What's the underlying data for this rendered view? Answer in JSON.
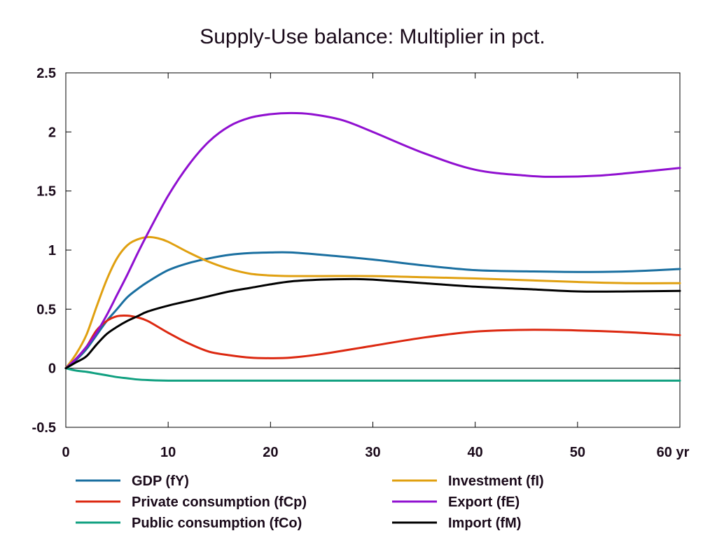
{
  "chart_data": {
    "type": "line",
    "title": "Supply-Use balance: Multiplier in pct.",
    "xlabel": "",
    "ylabel": "",
    "x_unit_label": "yr",
    "xlim": [
      0,
      60
    ],
    "ylim": [
      -0.5,
      2.5
    ],
    "x_ticks": [
      0,
      10,
      20,
      30,
      40,
      50,
      60
    ],
    "x_tick_labels": [
      "0",
      "10",
      "20",
      "30",
      "40",
      "50",
      "60 yr"
    ],
    "y_ticks": [
      -0.5,
      0,
      0.5,
      1,
      1.5,
      2,
      2.5
    ],
    "y_tick_labels": [
      "-0.5",
      "0",
      "0.5",
      "1",
      "1.5",
      "2",
      "2.5"
    ],
    "zero_line": true,
    "grid": false,
    "legend_position": "bottom",
    "series": [
      {
        "name": "GDP (fY)",
        "color": "#1a6fa0",
        "x": [
          0,
          1,
          2,
          3,
          4,
          5,
          6,
          7,
          8,
          10,
          12,
          14,
          16,
          18,
          20,
          22,
          25,
          30,
          35,
          40,
          45,
          50,
          55,
          60
        ],
        "y": [
          0,
          0.07,
          0.16,
          0.28,
          0.4,
          0.5,
          0.6,
          0.67,
          0.73,
          0.83,
          0.89,
          0.93,
          0.96,
          0.975,
          0.98,
          0.98,
          0.96,
          0.92,
          0.87,
          0.83,
          0.82,
          0.815,
          0.82,
          0.84
        ]
      },
      {
        "name": "Investment (fI)",
        "color": "#e0a010",
        "x": [
          0,
          1,
          2,
          3,
          4,
          5,
          6,
          7,
          8,
          9,
          10,
          12,
          14,
          16,
          18,
          20,
          22,
          25,
          30,
          35,
          40,
          45,
          50,
          55,
          60
        ],
        "y": [
          0,
          0.12,
          0.28,
          0.52,
          0.75,
          0.93,
          1.04,
          1.09,
          1.11,
          1.1,
          1.07,
          0.98,
          0.9,
          0.84,
          0.8,
          0.785,
          0.78,
          0.78,
          0.78,
          0.77,
          0.76,
          0.745,
          0.73,
          0.72,
          0.72
        ]
      },
      {
        "name": "Private consumption (fCp)",
        "color": "#dc2810",
        "x": [
          0,
          1,
          2,
          3,
          4,
          5,
          6,
          7,
          8,
          10,
          12,
          14,
          16,
          18,
          20,
          22,
          25,
          30,
          35,
          40,
          45,
          50,
          55,
          60
        ],
        "y": [
          0,
          0.08,
          0.18,
          0.32,
          0.4,
          0.44,
          0.445,
          0.43,
          0.4,
          0.3,
          0.21,
          0.14,
          0.11,
          0.09,
          0.085,
          0.09,
          0.12,
          0.19,
          0.26,
          0.31,
          0.325,
          0.32,
          0.305,
          0.28
        ]
      },
      {
        "name": "Export (fE)",
        "color": "#9010d0",
        "x": [
          0,
          1,
          2,
          3,
          4,
          5,
          6,
          7,
          8,
          10,
          12,
          14,
          16,
          18,
          20,
          22,
          24,
          27,
          30,
          35,
          40,
          45,
          48,
          52,
          56,
          60
        ],
        "y": [
          0,
          0.08,
          0.18,
          0.3,
          0.45,
          0.62,
          0.79,
          0.97,
          1.14,
          1.46,
          1.72,
          1.92,
          2.05,
          2.12,
          2.15,
          2.16,
          2.15,
          2.1,
          2.0,
          1.82,
          1.68,
          1.63,
          1.62,
          1.63,
          1.66,
          1.695
        ]
      },
      {
        "name": "Public consumption (fCo)",
        "color": "#10a080",
        "x": [
          0,
          1,
          2,
          3,
          4,
          5,
          6,
          7,
          8,
          10,
          15,
          20,
          30,
          40,
          50,
          60
        ],
        "y": [
          0,
          -0.02,
          -0.03,
          -0.045,
          -0.06,
          -0.075,
          -0.085,
          -0.095,
          -0.1,
          -0.105,
          -0.105,
          -0.105,
          -0.105,
          -0.105,
          -0.105,
          -0.105
        ]
      },
      {
        "name": "Import (fM)",
        "color": "#000000",
        "x": [
          0,
          1,
          2,
          3,
          4,
          5,
          6,
          7,
          8,
          10,
          12,
          14,
          16,
          18,
          20,
          22,
          25,
          28,
          30,
          35,
          40,
          45,
          50,
          55,
          60
        ],
        "y": [
          0,
          0.05,
          0.1,
          0.2,
          0.29,
          0.35,
          0.4,
          0.44,
          0.48,
          0.53,
          0.57,
          0.61,
          0.65,
          0.68,
          0.71,
          0.735,
          0.75,
          0.755,
          0.75,
          0.72,
          0.69,
          0.67,
          0.65,
          0.65,
          0.655
        ]
      }
    ],
    "legend_order": [
      "GDP (fY)",
      "Investment (fI)",
      "Private consumption (fCp)",
      "Export (fE)",
      "Public consumption (fCo)",
      "Import (fM)"
    ]
  }
}
